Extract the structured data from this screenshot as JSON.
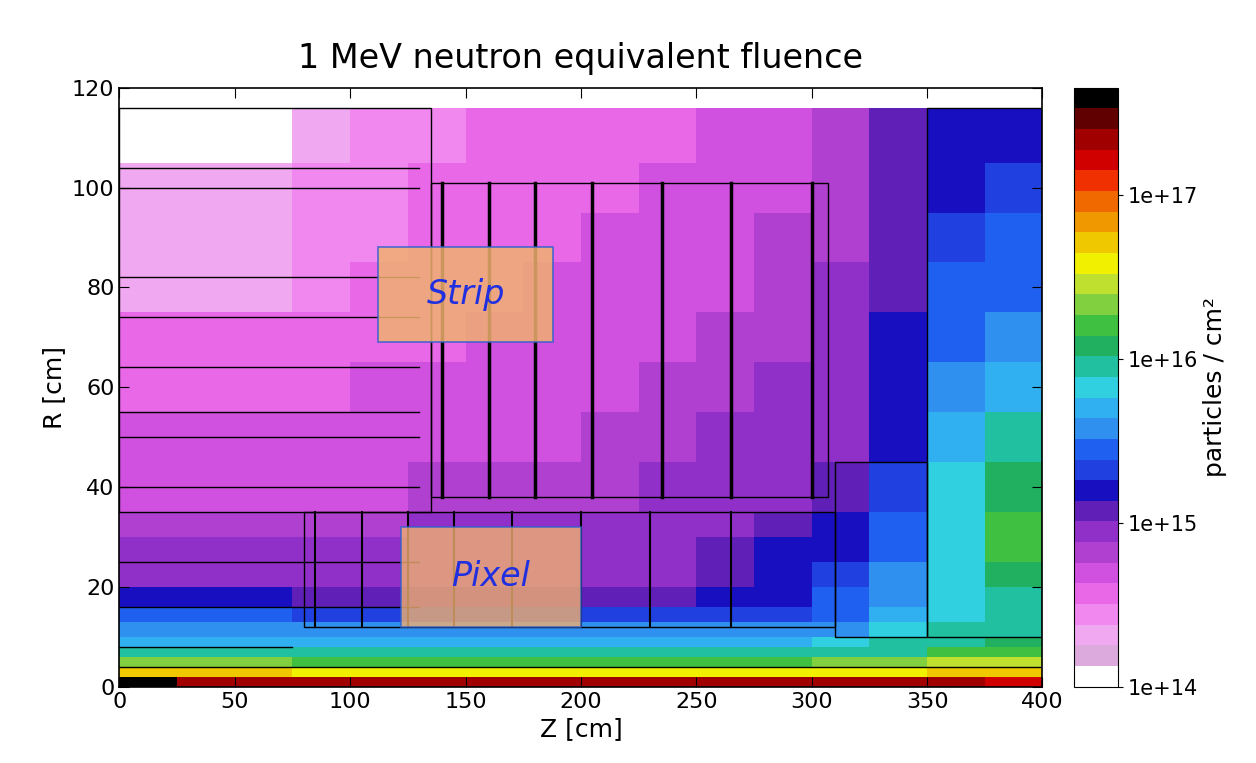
{
  "chart_data": {
    "type": "heatmap",
    "title": "1 MeV neutron equivalent fluence",
    "x_label": "Z [cm]",
    "y_label": "R [cm]",
    "x_edges": [
      0,
      25,
      50,
      75,
      100,
      125,
      150,
      175,
      200,
      225,
      250,
      275,
      300,
      325,
      350,
      375,
      400
    ],
    "y_edges": [
      0,
      2,
      4,
      6,
      8,
      10,
      13,
      16,
      20,
      25,
      30,
      35,
      45,
      55,
      65,
      75,
      85,
      95,
      105,
      116
    ],
    "cells": [
      [
        4e+17,
        2e+17,
        2e+17,
        2e+17,
        2e+17,
        2e+17,
        2e+17,
        2e+17,
        2e+17,
        2e+17,
        2e+17,
        2e+17,
        2e+17,
        2e+17,
        2e+17,
        1.5e+17
      ],
      [
        5e+16,
        5e+16,
        5e+16,
        4e+16,
        4e+16,
        4e+16,
        4e+16,
        4e+16,
        4e+16,
        4e+16,
        4e+16,
        4e+16,
        4e+16,
        4e+16,
        5e+16,
        5e+16
      ],
      [
        2e+16,
        2e+16,
        2e+16,
        1.5e+16,
        1.5e+16,
        1.5e+16,
        1.5e+16,
        1.5e+16,
        1.5e+16,
        1.5e+16,
        1.5e+16,
        1.5e+16,
        2e+16,
        2e+16,
        2.5e+16,
        3e+16
      ],
      [
        8000000000000000.0,
        8000000000000000.0,
        8000000000000000.0,
        8000000000000000.0,
        8000000000000000.0,
        8000000000000000.0,
        8000000000000000.0,
        8000000000000000.0,
        8000000000000000.0,
        8000000000000000.0,
        8000000000000000.0,
        8000000000000000.0,
        1e+16,
        1e+16,
        1.5e+16,
        1.5e+16
      ],
      [
        5000000000000000.0,
        5000000000000000.0,
        5000000000000000.0,
        5000000000000000.0,
        5000000000000000.0,
        5000000000000000.0,
        5000000000000000.0,
        5000000000000000.0,
        5000000000000000.0,
        5000000000000000.0,
        5000000000000000.0,
        5000000000000000.0,
        6000000000000000.0,
        8000000000000000.0,
        1e+16,
        1.2e+16
      ],
      [
        3500000000000000.0,
        3500000000000000.0,
        3500000000000000.0,
        3500000000000000.0,
        3500000000000000.0,
        3500000000000000.0,
        3500000000000000.0,
        3500000000000000.0,
        3500000000000000.0,
        3500000000000000.0,
        3500000000000000.0,
        3500000000000000.0,
        4000000000000000.0,
        6000000000000000.0,
        8000000000000000.0,
        1e+16
      ],
      [
        2500000000000000.0,
        2500000000000000.0,
        2500000000000000.0,
        2000000000000000.0,
        2000000000000000.0,
        2000000000000000.0,
        2000000000000000.0,
        2000000000000000.0,
        2000000000000000.0,
        2000000000000000.0,
        2000000000000000.0,
        2000000000000000.0,
        3000000000000000.0,
        5000000000000000.0,
        6000000000000000.0,
        8000000000000000.0
      ],
      [
        1500000000000000.0,
        1500000000000000.0,
        1500000000000000.0,
        1300000000000000.0,
        1300000000000000.0,
        1300000000000000.0,
        1300000000000000.0,
        1300000000000000.0,
        1300000000000000.0,
        1300000000000000.0,
        1500000000000000.0,
        1800000000000000.0,
        2500000000000000.0,
        4000000000000000.0,
        6000000000000000.0,
        8000000000000000.0
      ],
      [
        1000000000000000.0,
        1000000000000000.0,
        1000000000000000.0,
        1000000000000000.0,
        1000000000000000.0,
        1000000000000000.0,
        1000000000000000.0,
        1000000000000000.0,
        1000000000000000.0,
        1000000000000000.0,
        1300000000000000.0,
        1500000000000000.0,
        2000000000000000.0,
        3500000000000000.0,
        6000000000000000.0,
        1.2e+16
      ],
      [
        800000000000000.0,
        800000000000000.0,
        800000000000000.0,
        800000000000000.0,
        800000000000000.0,
        800000000000000.0,
        800000000000000.0,
        800000000000000.0,
        1000000000000000.0,
        1000000000000000.0,
        1300000000000000.0,
        1500000000000000.0,
        1800000000000000.0,
        3000000000000000.0,
        6000000000000000.0,
        1.5e+16
      ],
      [
        650000000000000.0,
        650000000000000.0,
        650000000000000.0,
        650000000000000.0,
        650000000000000.0,
        800000000000000.0,
        800000000000000.0,
        800000000000000.0,
        800000000000000.0,
        800000000000000.0,
        1000000000000000.0,
        1300000000000000.0,
        1500000000000000.0,
        2500000000000000.0,
        6000000000000000.0,
        1.5e+16
      ],
      [
        500000000000000.0,
        500000000000000.0,
        500000000000000.0,
        500000000000000.0,
        500000000000000.0,
        650000000000000.0,
        650000000000000.0,
        650000000000000.0,
        650000000000000.0,
        800000000000000.0,
        800000000000000.0,
        1000000000000000.0,
        1300000000000000.0,
        2000000000000000.0,
        6000000000000000.0,
        1.2e+16
      ],
      [
        500000000000000.0,
        500000000000000.0,
        500000000000000.0,
        500000000000000.0,
        500000000000000.0,
        500000000000000.0,
        500000000000000.0,
        500000000000000.0,
        650000000000000.0,
        650000000000000.0,
        800000000000000.0,
        800000000000000.0,
        1000000000000000.0,
        1800000000000000.0,
        5000000000000000.0,
        8000000000000000.0
      ],
      [
        350000000000000.0,
        350000000000000.0,
        350000000000000.0,
        350000000000000.0,
        500000000000000.0,
        500000000000000.0,
        500000000000000.0,
        500000000000000.0,
        500000000000000.0,
        650000000000000.0,
        650000000000000.0,
        800000000000000.0,
        1000000000000000.0,
        1500000000000000.0,
        4000000000000000.0,
        5000000000000000.0
      ],
      [
        350000000000000.0,
        350000000000000.0,
        350000000000000.0,
        350000000000000.0,
        350000000000000.0,
        350000000000000.0,
        500000000000000.0,
        500000000000000.0,
        500000000000000.0,
        500000000000000.0,
        650000000000000.0,
        650000000000000.0,
        800000000000000.0,
        1500000000000000.0,
        3000000000000000.0,
        4000000000000000.0
      ],
      [
        200000000000000.0,
        200000000000000.0,
        200000000000000.0,
        250000000000000.0,
        350000000000000.0,
        350000000000000.0,
        350000000000000.0,
        500000000000000.0,
        500000000000000.0,
        500000000000000.0,
        500000000000000.0,
        650000000000000.0,
        800000000000000.0,
        1300000000000000.0,
        2500000000000000.0,
        3000000000000000.0
      ],
      [
        200000000000000.0,
        200000000000000.0,
        200000000000000.0,
        250000000000000.0,
        250000000000000.0,
        350000000000000.0,
        350000000000000.0,
        350000000000000.0,
        500000000000000.0,
        500000000000000.0,
        500000000000000.0,
        650000000000000.0,
        650000000000000.0,
        1300000000000000.0,
        2000000000000000.0,
        2500000000000000.0
      ],
      [
        200000000000000.0,
        200000000000000.0,
        200000000000000.0,
        250000000000000.0,
        250000000000000.0,
        350000000000000.0,
        350000000000000.0,
        350000000000000.0,
        350000000000000.0,
        500000000000000.0,
        500000000000000.0,
        500000000000000.0,
        650000000000000.0,
        1300000000000000.0,
        1800000000000000.0,
        2000000000000000.0
      ],
      [
        100000000000000.0,
        100000000000000.0,
        100000000000000.0,
        200000000000000.0,
        250000000000000.0,
        250000000000000.0,
        350000000000000.0,
        350000000000000.0,
        350000000000000.0,
        350000000000000.0,
        500000000000000.0,
        500000000000000.0,
        650000000000000.0,
        1300000000000000.0,
        1500000000000000.0,
        1800000000000000.0
      ]
    ],
    "xlim": [
      0,
      400
    ],
    "ylim": [
      0,
      120
    ],
    "xticks": [
      0,
      50,
      100,
      150,
      200,
      250,
      300,
      350,
      400
    ],
    "yticks": [
      0,
      20,
      40,
      60,
      80,
      100,
      120
    ],
    "colorbar": {
      "label": "particles / cm²",
      "range": [
        100000000000000.0,
        4.5e+17
      ],
      "ticks": [
        {
          "value": 100000000000000.0,
          "label": "1e+14"
        },
        {
          "value": 1000000000000000.0,
          "label": "1e+15"
        },
        {
          "value": 1e+16,
          "label": "1e+16"
        },
        {
          "value": 1e+17,
          "label": "1e+17"
        }
      ]
    },
    "annotations": [
      {
        "text": "Strip"
      },
      {
        "text": "Pixel"
      }
    ]
  }
}
